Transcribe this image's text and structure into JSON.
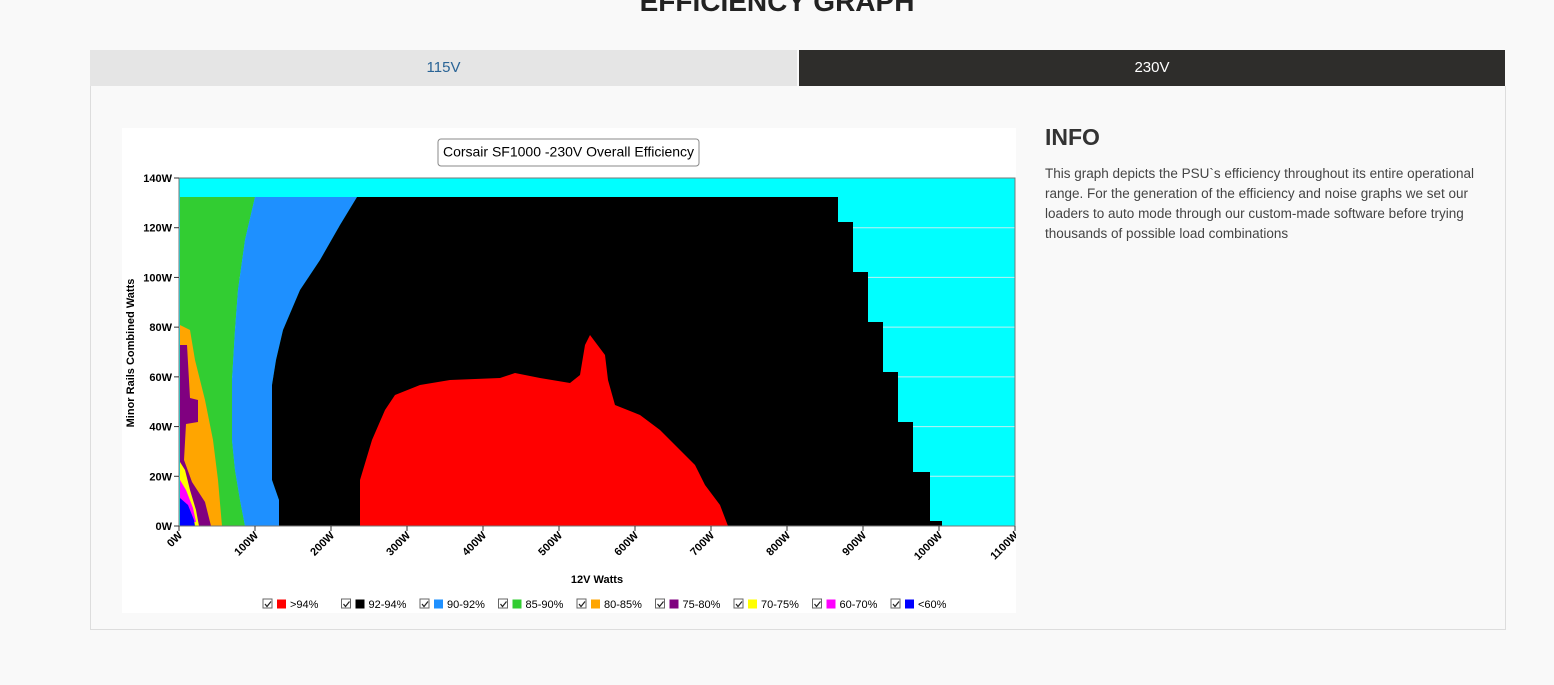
{
  "header": {
    "title": "EFFICIENCY GRAPH"
  },
  "tabs": [
    "115V",
    "230V"
  ],
  "chart_data": {
    "type": "contour",
    "title": "Corsair SF1000 -230V Overall Efficiency",
    "x_label": "12V Watts",
    "y_label": "Minor Rails Combined Watts",
    "xlim": [
      0,
      1100
    ],
    "xticks": [
      {
        "value": 0,
        "label": "0W"
      },
      {
        "value": 100,
        "label": "100W"
      },
      {
        "value": 200,
        "label": "200W"
      },
      {
        "value": 300,
        "label": "300W"
      },
      {
        "value": 400,
        "label": "400W"
      },
      {
        "value": 500,
        "label": "500W"
      },
      {
        "value": 600,
        "label": "600W"
      },
      {
        "value": 700,
        "label": "700W"
      },
      {
        "value": 800,
        "label": "800W"
      },
      {
        "value": 900,
        "label": "900W"
      },
      {
        "value": 1000,
        "label": "1000W"
      },
      {
        "value": 1100,
        "label": "1100W"
      }
    ],
    "ylim": [
      0,
      140
    ],
    "yticks": [
      {
        "value": 0,
        "label": "0W"
      },
      {
        "value": 20,
        "label": "20W"
      },
      {
        "value": 40,
        "label": "40W"
      },
      {
        "value": 60,
        "label": "60W"
      },
      {
        "value": 80,
        "label": "80W"
      },
      {
        "value": 100,
        "label": "100W"
      },
      {
        "value": 120,
        "label": "120W"
      },
      {
        "value": 140,
        "label": "140W"
      }
    ],
    "grid": true,
    "legend": [
      {
        "name": ">94%",
        "color": "#ff0000"
      },
      {
        "name": "92-94%",
        "color": "#000000"
      },
      {
        "name": "90-92%",
        "color": "#1e90ff"
      },
      {
        "name": "85-90%",
        "color": "#32cd32"
      },
      {
        "name": "80-85%",
        "color": "#ffa500"
      },
      {
        "name": "75-80%",
        "color": "#800080"
      },
      {
        "name": "70-75%",
        "color": "#ffff00"
      },
      {
        "name": "60-70%",
        "color": "#ff00ff"
      },
      {
        "name": "<60%",
        "color": "#0000ff"
      }
    ]
  },
  "info": {
    "title": "INFO",
    "text": "This graph depicts the PSU`s efficiency throughout its entire operational range. For the generation of the efficiency and noise graphs we set our loaders to auto mode through our custom-made software before trying thousands of possible load combinations"
  }
}
